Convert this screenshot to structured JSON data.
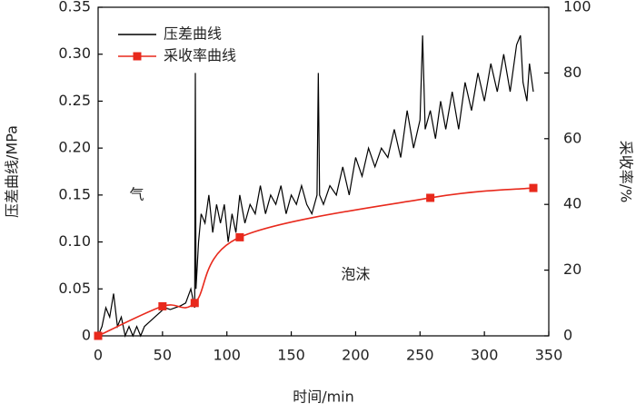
{
  "chart_data": {
    "type": "line",
    "x_label": "时间/min",
    "y_label": "压差曲线/MPa",
    "y2_label": "采收率/%",
    "legend": "upper left",
    "annotations": [
      {
        "text": "气",
        "x": 30,
        "y": 0.15
      },
      {
        "text": "泡沫",
        "x": 200,
        "y": 0.065
      }
    ],
    "xlim": [
      0,
      350
    ],
    "xticks": [
      0,
      50,
      100,
      150,
      200,
      250,
      300,
      350
    ],
    "ylim": [
      0,
      0.35
    ],
    "yticks": [
      0,
      0.05,
      {
        "value": 0.1,
        "label": "0.10"
      },
      0.15,
      {
        "value": 0.2,
        "label": "0.20"
      },
      0.25,
      {
        "value": 0.3,
        "label": "0.30"
      },
      0.35
    ],
    "y2lim": [
      0,
      100
    ],
    "y2ticks": [
      0,
      20,
      40,
      60,
      80,
      100
    ],
    "series": [
      {
        "name": "压差曲线",
        "color": "#000000",
        "markers": false,
        "x": [
          0,
          3,
          6,
          9,
          12,
          15,
          18,
          21,
          24,
          27,
          30,
          33,
          36,
          40,
          44,
          48,
          52,
          56,
          60,
          64,
          68,
          72,
          75,
          75.5,
          76,
          78,
          80,
          83,
          86,
          89,
          92,
          95,
          98,
          101,
          104,
          107,
          110,
          114,
          118,
          122,
          126,
          130,
          134,
          138,
          142,
          146,
          150,
          154,
          158,
          162,
          166,
          170,
          171,
          172,
          175,
          180,
          185,
          190,
          195,
          200,
          205,
          210,
          215,
          220,
          225,
          230,
          235,
          240,
          245,
          250,
          252,
          254,
          258,
          262,
          266,
          270,
          275,
          280,
          285,
          290,
          295,
          300,
          305,
          310,
          315,
          320,
          325,
          328,
          330,
          333,
          335,
          338
        ],
        "values": [
          0,
          0.01,
          0.03,
          0.02,
          0.045,
          0.01,
          0.02,
          0,
          0.01,
          0,
          0.01,
          0,
          0.01,
          0.015,
          0.02,
          0.025,
          0.03,
          0.028,
          0.03,
          0.032,
          0.035,
          0.05,
          0.03,
          0.28,
          0.05,
          0.1,
          0.13,
          0.12,
          0.15,
          0.11,
          0.14,
          0.12,
          0.14,
          0.1,
          0.13,
          0.11,
          0.15,
          0.12,
          0.14,
          0.13,
          0.16,
          0.13,
          0.15,
          0.14,
          0.16,
          0.13,
          0.15,
          0.14,
          0.16,
          0.14,
          0.13,
          0.15,
          0.28,
          0.15,
          0.14,
          0.16,
          0.15,
          0.18,
          0.15,
          0.19,
          0.17,
          0.2,
          0.18,
          0.2,
          0.19,
          0.22,
          0.19,
          0.24,
          0.2,
          0.23,
          0.32,
          0.22,
          0.24,
          0.21,
          0.25,
          0.22,
          0.26,
          0.22,
          0.27,
          0.24,
          0.28,
          0.25,
          0.29,
          0.26,
          0.3,
          0.26,
          0.31,
          0.32,
          0.27,
          0.25,
          0.29,
          0.26
        ]
      },
      {
        "name": "采收率曲线",
        "color": "#e8291c",
        "markers": true,
        "axis": "y2",
        "x": [
          0,
          50,
          75,
          110,
          258,
          338
        ],
        "values": [
          0,
          9,
          10,
          30,
          42,
          45
        ]
      }
    ]
  }
}
